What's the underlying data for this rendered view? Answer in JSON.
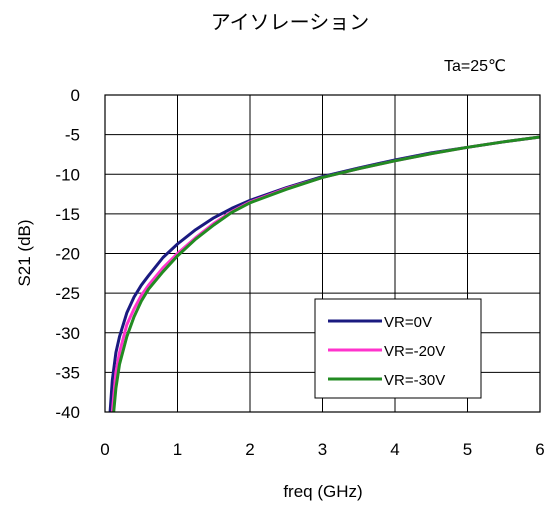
{
  "chart_data": {
    "type": "line",
    "title": "アイソレーション",
    "annotation": "Ta=25℃",
    "xlabel": "freq (GHz)",
    "ylabel": "S21 (dB)",
    "xlim": [
      0,
      6
    ],
    "ylim": [
      -40,
      0
    ],
    "x_ticks": [
      "0",
      "1",
      "2",
      "3",
      "4",
      "5",
      "6"
    ],
    "y_ticks": [
      "0",
      "-5",
      "-10",
      "-15",
      "-20",
      "-25",
      "-30",
      "-35",
      "-40"
    ],
    "grid": true,
    "legend_position": "lower-right",
    "series": [
      {
        "name": "VR=0V",
        "color": "#1a1a80",
        "x": [
          0.07,
          0.1,
          0.15,
          0.2,
          0.3,
          0.4,
          0.5,
          0.6,
          0.8,
          1.0,
          1.25,
          1.5,
          1.75,
          2.0,
          2.5,
          3.0,
          3.5,
          4.0,
          4.5,
          5.0,
          5.5,
          6.0
        ],
        "y": [
          -40,
          -36,
          -32.5,
          -30.5,
          -27.5,
          -25.5,
          -24,
          -22.8,
          -20.5,
          -18.8,
          -17,
          -15.5,
          -14.3,
          -13.3,
          -11.7,
          -10.3,
          -9.2,
          -8.2,
          -7.3,
          -6.6,
          -5.9,
          -5.3
        ]
      },
      {
        "name": "VR=-20V",
        "color": "#ff33cc",
        "x": [
          0.1,
          0.15,
          0.2,
          0.3,
          0.4,
          0.5,
          0.6,
          0.8,
          1.0,
          1.25,
          1.5,
          1.75,
          2.0,
          2.5,
          3.0,
          3.5,
          4.0,
          4.5,
          5.0,
          5.5,
          6.0
        ],
        "y": [
          -40,
          -35,
          -32.5,
          -29,
          -27,
          -25.3,
          -24,
          -21.8,
          -20,
          -18,
          -16.2,
          -14.7,
          -13.5,
          -11.8,
          -10.4,
          -9.3,
          -8.3,
          -7.4,
          -6.6,
          -5.9,
          -5.3
        ]
      },
      {
        "name": "VR=-30V",
        "color": "#228b22",
        "x": [
          0.12,
          0.15,
          0.2,
          0.3,
          0.4,
          0.5,
          0.6,
          0.8,
          1.0,
          1.25,
          1.5,
          1.75,
          2.0,
          2.5,
          3.0,
          3.5,
          4.0,
          4.5,
          5.0,
          5.5,
          6.0
        ],
        "y": [
          -40,
          -37,
          -34,
          -30.5,
          -28,
          -26,
          -24.5,
          -22.3,
          -20.3,
          -18.2,
          -16.4,
          -14.8,
          -13.6,
          -11.9,
          -10.4,
          -9.3,
          -8.3,
          -7.4,
          -6.6,
          -5.9,
          -5.3
        ]
      }
    ]
  }
}
